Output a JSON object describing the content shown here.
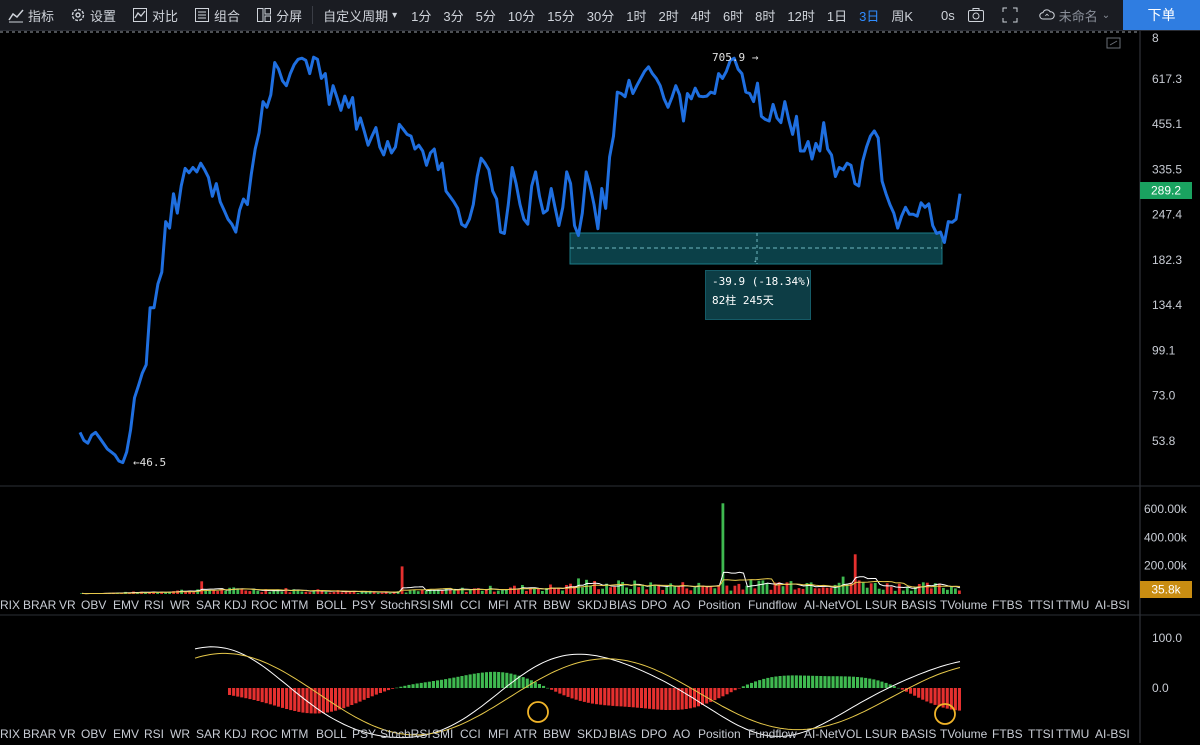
{
  "toolbar": {
    "indicators_label": "指标",
    "settings_label": "设置",
    "compare_label": "对比",
    "combo_label": "组合",
    "split_label": "分屏",
    "custom_period_label": "自定义周期",
    "periods": [
      "1分",
      "3分",
      "5分",
      "10分",
      "15分",
      "30分",
      "1时",
      "2时",
      "4时",
      "6时",
      "8时",
      "12时",
      "1日",
      "3日",
      "周K"
    ],
    "active_period": "3日",
    "countdown": "0s",
    "layout_name": "未命名",
    "order_label": "下单"
  },
  "price_axis": {
    "ticks": [
      "617.3",
      "455.1",
      "335.5",
      "247.4",
      "182.3",
      "134.4",
      "99.1",
      "73.0",
      "53.8"
    ],
    "top_partial": "8",
    "current_price": "289.2",
    "current_price_color": "#1aa260"
  },
  "price_chart": {
    "type": "line",
    "scale": "log",
    "line_color": "#1f6fe0",
    "high_label": "705.9 →",
    "low_label": "←46.5",
    "values": [
      57,
      54,
      53,
      56,
      57,
      55,
      53,
      51,
      50,
      49,
      47,
      46.5,
      50,
      58,
      72,
      78,
      85,
      90,
      132,
      132,
      155,
      168,
      236,
      226,
      285,
      250,
      300,
      338,
      328,
      340,
      330,
      350,
      335,
      318,
      280,
      305,
      270,
      255,
      240,
      232,
      220,
      255,
      275,
      265,
      325,
      385,
      430,
      530,
      510,
      555,
      690,
      660,
      610,
      590,
      640,
      680,
      705,
      710,
      700,
      640,
      715,
      705,
      620,
      640,
      520,
      590,
      545,
      500,
      550,
      510,
      545,
      440,
      475,
      435,
      395,
      420,
      445,
      390,
      370,
      405,
      375,
      390,
      455,
      440,
      425,
      420,
      385,
      395,
      380,
      345,
      375,
      385,
      335,
      350,
      290,
      280,
      270,
      258,
      232,
      228,
      240,
      265,
      320,
      362,
      350,
      335,
      290,
      275,
      220,
      218,
      265,
      340,
      305,
      265,
      240,
      232,
      300,
      330,
      280,
      250,
      255,
      295,
      260,
      230,
      260,
      330,
      305,
      230,
      215,
      250,
      330,
      300,
      265,
      225,
      295,
      258,
      365,
      420,
      565,
      560,
      548,
      612,
      560,
      590,
      620,
      650,
      670,
      640,
      620,
      590,
      540,
      510,
      545,
      590,
      555,
      465,
      560,
      540,
      580,
      550,
      548,
      550,
      565,
      560,
      640,
      620,
      650,
      700,
      710,
      660,
      640,
      565,
      560,
      530,
      600,
      480,
      470,
      465,
      520,
      475,
      460,
      530,
      470,
      425,
      480,
      380,
      380,
      405,
      360,
      400,
      380,
      460,
      385,
      370,
      320,
      340,
      335,
      350,
      345,
      305,
      300,
      355,
      390,
      420,
      435,
      415,
      310,
      285,
      265,
      250,
      226,
      245,
      260,
      248,
      248,
      245,
      268,
      260,
      266,
      230,
      218,
      220,
      205,
      236,
      235,
      240,
      285
    ]
  },
  "measure": {
    "change": "-39.9 (-18.34%)",
    "bars_days": "82柱 245天"
  },
  "volume_axis": {
    "ticks": [
      "600.00k",
      "400.00k",
      "200.00k"
    ],
    "current_volume": "35.8k",
    "current_volume_color": "#c98d12"
  },
  "oscillator_axis": {
    "ticks": [
      "100.0",
      "0.0"
    ]
  },
  "indicator_tabs": [
    "RIX",
    "BRAR",
    "VR",
    "OBV",
    "EMV",
    "RSI",
    "WR",
    "SAR",
    "KDJ",
    "ROC",
    "MTM",
    "BOLL",
    "PSY",
    "StochRSI",
    "SMI",
    "CCI",
    "MFI",
    "ATR",
    "BBW",
    "SKDJ",
    "BIAS",
    "DPO",
    "AO",
    "Position",
    "Fundflow",
    "AI-NetVOL",
    "LSUR",
    "BASIS",
    "TVolume",
    "FTBS",
    "TTSI",
    "TTMU",
    "AI-BSI"
  ],
  "colors": {
    "up": "#3fb950",
    "down": "#e5302f",
    "signal_line": "#e6c84a",
    "osc_line": "#ffffff",
    "highlight_circle": "#f0b429",
    "measure_box": "#0f5560"
  }
}
